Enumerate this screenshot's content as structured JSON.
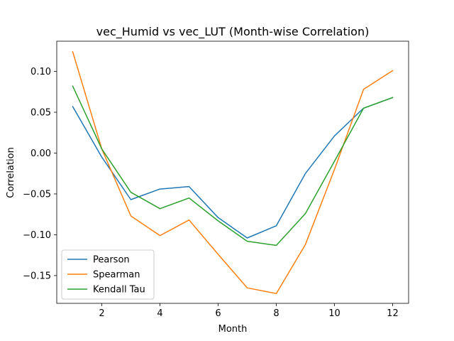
{
  "chart_data": {
    "type": "line",
    "title": "vec_Humid vs vec_LUT (Month-wise Correlation)",
    "xlabel": "Month",
    "ylabel": "Correlation",
    "x": [
      1,
      2,
      3,
      4,
      5,
      6,
      7,
      8,
      9,
      10,
      11,
      12
    ],
    "xlim": [
      0.45,
      12.55
    ],
    "ylim": [
      -0.184,
      0.137
    ],
    "xticks": [
      2,
      4,
      6,
      8,
      10,
      12
    ],
    "yticks": [
      -0.15,
      -0.1,
      -0.05,
      0.0,
      0.05,
      0.1
    ],
    "ytick_labels": [
      "−0.15",
      "−0.10",
      "−0.05",
      "0.00",
      "0.05",
      "0.10"
    ],
    "grid": false,
    "legend": "lower-left",
    "series": [
      {
        "name": "Pearson",
        "color": "#1f77b4",
        "values": [
          0.057,
          -0.005,
          -0.057,
          -0.044,
          -0.041,
          -0.079,
          -0.104,
          -0.089,
          -0.025,
          0.021,
          0.055,
          0.068
        ]
      },
      {
        "name": "Spearman",
        "color": "#ff7f0e",
        "values": [
          0.124,
          0.005,
          -0.077,
          -0.101,
          -0.082,
          -0.124,
          -0.165,
          -0.172,
          -0.112,
          -0.02,
          0.078,
          0.101
        ]
      },
      {
        "name": "Kendall Tau",
        "color": "#2ca02c",
        "values": [
          0.082,
          0.005,
          -0.048,
          -0.068,
          -0.055,
          -0.083,
          -0.108,
          -0.113,
          -0.074,
          -0.01,
          0.055,
          0.068
        ]
      }
    ]
  }
}
